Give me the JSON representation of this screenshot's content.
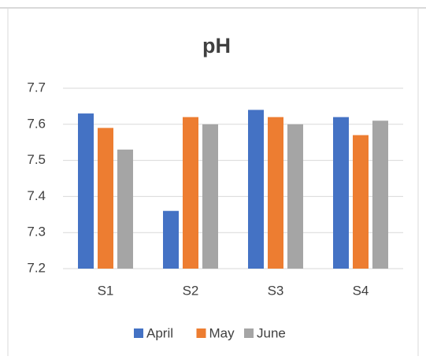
{
  "chart_data": {
    "type": "bar",
    "title": "pH",
    "categories": [
      "S1",
      "S2",
      "S3",
      "S4"
    ],
    "series": [
      {
        "name": "April",
        "color": "#4472c4",
        "values": [
          7.63,
          7.36,
          7.64,
          7.62
        ]
      },
      {
        "name": "May",
        "color": "#ed7d31",
        "values": [
          7.59,
          7.62,
          7.62,
          7.57
        ]
      },
      {
        "name": "June",
        "color": "#a5a5a5",
        "values": [
          7.53,
          7.6,
          7.6,
          7.61
        ]
      }
    ],
    "ylim": [
      7.2,
      7.7
    ],
    "yticks": [
      7.2,
      7.3,
      7.4,
      7.5,
      7.6,
      7.7
    ],
    "grid": true,
    "legend": "bottom"
  }
}
